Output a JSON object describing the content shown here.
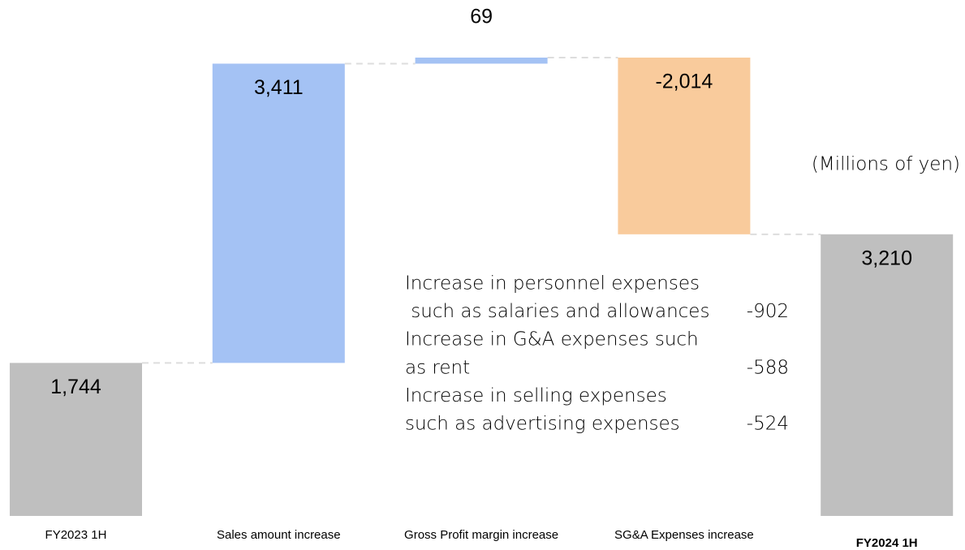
{
  "chart_data": {
    "type": "waterfall",
    "categories": [
      "FY2023 1H",
      "Sales amount increase",
      "Gross Profit margin increase",
      "SG&A Expenses increase",
      "FY2024 1H"
    ],
    "values": [
      1744,
      3411,
      69,
      -2014,
      3210
    ],
    "value_labels": [
      "1,744",
      "3,411",
      "69",
      "-2,014",
      "3,210"
    ],
    "colors": [
      "#bfbfbf",
      "#a4c2f4",
      "#a4c2f4",
      "#f9cb9c",
      "#bfbfbf"
    ],
    "unit_label": "(Millions of yen)",
    "breakdown": [
      {
        "lines": [
          "Increase in personnel expenses",
          " such as salaries and allowances"
        ],
        "value": -902
      },
      {
        "lines": [
          "Increase in G&A expenses such",
          "as rent"
        ],
        "value": -588
      },
      {
        "lines": [
          "Increase in selling expenses",
          "such as advertising expenses"
        ],
        "value": -524
      }
    ]
  }
}
